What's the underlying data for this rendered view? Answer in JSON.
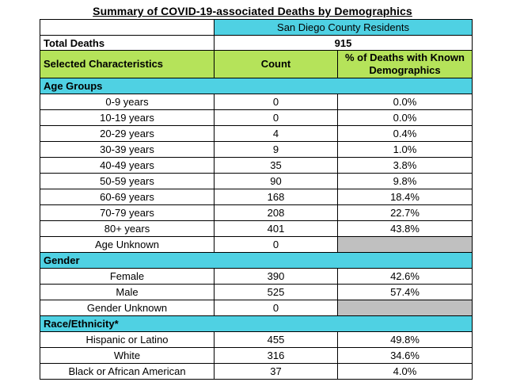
{
  "title": "Summary of COVID-19-associated Deaths by Demographics",
  "population_label": "San Diego County Residents",
  "total": {
    "label": "Total Deaths",
    "value": "915"
  },
  "columns": {
    "characteristic": "Selected Characteristics",
    "count": "Count",
    "percent": "% of Deaths with Known Demographics"
  },
  "sections": {
    "age": {
      "label": "Age Groups",
      "rows": [
        {
          "label": "0-9 years",
          "count": "0",
          "percent": "0.0%"
        },
        {
          "label": "10-19 years",
          "count": "0",
          "percent": "0.0%"
        },
        {
          "label": "20-29 years",
          "count": "4",
          "percent": "0.4%"
        },
        {
          "label": "30-39 years",
          "count": "9",
          "percent": "1.0%"
        },
        {
          "label": "40-49 years",
          "count": "35",
          "percent": "3.8%"
        },
        {
          "label": "50-59 years",
          "count": "90",
          "percent": "9.8%"
        },
        {
          "label": "60-69 years",
          "count": "168",
          "percent": "18.4%"
        },
        {
          "label": "70-79 years",
          "count": "208",
          "percent": "22.7%"
        },
        {
          "label": "80+ years",
          "count": "401",
          "percent": "43.8%"
        },
        {
          "label": "Age Unknown",
          "count": "0",
          "percent": ""
        }
      ]
    },
    "gender": {
      "label": "Gender",
      "rows": [
        {
          "label": "Female",
          "count": "390",
          "percent": "42.6%"
        },
        {
          "label": "Male",
          "count": "525",
          "percent": "57.4%"
        },
        {
          "label": "Gender Unknown",
          "count": "0",
          "percent": ""
        }
      ]
    },
    "race": {
      "label": "Race/Ethnicity*",
      "rows": [
        {
          "label": "Hispanic or Latino",
          "count": "455",
          "percent": "49.8%"
        },
        {
          "label": "White",
          "count": "316",
          "percent": "34.6%"
        },
        {
          "label": "Black or African American",
          "count": "37",
          "percent": "4.0%"
        }
      ]
    }
  },
  "colors": {
    "header_cyan": "#4fd1e3",
    "header_green": "#b5e35a",
    "unknown_gray": "#c0c0c0"
  }
}
